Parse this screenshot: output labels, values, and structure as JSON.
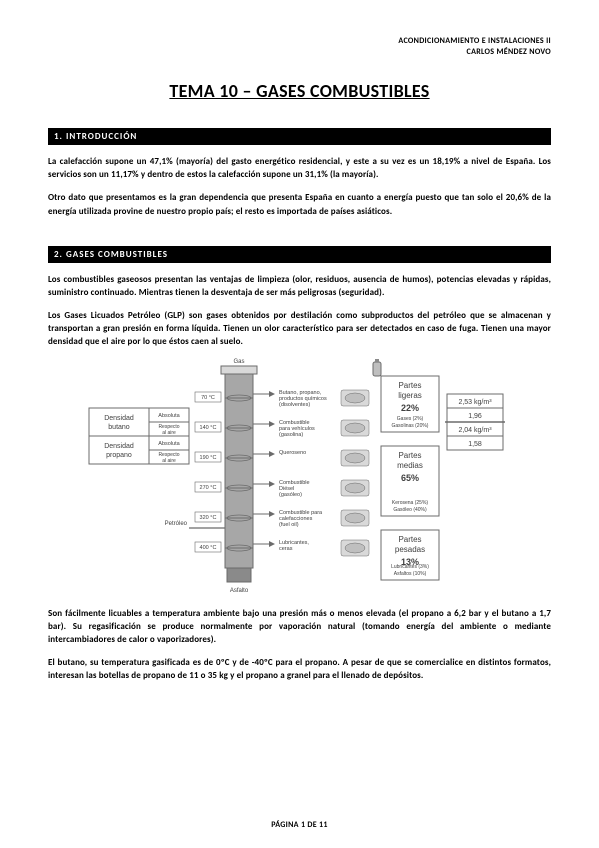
{
  "header": {
    "line1": "ACONDICIONAMIENTO E INSTALACIONES II",
    "line2": "CARLOS MÉNDEZ NOVO"
  },
  "title": "TEMA 10 – GASES COMBUSTIBLES",
  "section1": {
    "heading": "1. INTRODUCCIÓN",
    "p1": "La calefacción supone un 47,1% (mayoría) del gasto energético residencial, y este a su vez es un 18,19% a nivel de España. Los servicios son un 11,17% y dentro de estos la calefacción supone un 31,1% (la mayoría).",
    "p2": "Otro dato que presentamos es la gran dependencia que presenta España en cuanto a energía puesto que tan solo el 20,6% de la energía utilizada provine de nuestro propio país; el resto es importada de países asiáticos."
  },
  "section2": {
    "heading": "2. GASES COMBUSTIBLES",
    "p1": "Los combustibles gaseosos presentan las ventajas de limpieza (olor, residuos, ausencia de humos), potencias elevadas y rápidas, suministro continuado. Mientras tienen la desventaja de ser más peligrosas (seguridad).",
    "p2": "Los Gases Licuados Petróleo (GLP) son gases obtenidos por destilación como subproductos del petróleo que se almacenan y transportan a gran presión en forma líquida. Tienen un olor característico para ser detectados en caso de fuga. Tienen una mayor densidad que el aire por lo que éstos caen al suelo.",
    "p3": "Son fácilmente licuables a temperatura ambiente bajo una presión más o menos elevada (el propano a 6,2 bar y el butano a 1,7 bar). Su regasificación se produce normalmente por vaporación natural (tomando energía del ambiente o mediante intercambiadores de calor o vaporizadores).",
    "p4": "El butano, su temperatura gasificada es de 0ºC y de -40ºC para el propano. A pesar de que se comercialice en distintos formatos, interesan las botellas de propano de 11 o 35 kg y el propano a granel para el llenado de depósitos."
  },
  "footer": "PÁGINA 1 DE 11",
  "diagram": {
    "type": "infographic",
    "colors": {
      "stroke": "#6b6b6b",
      "fill_light": "#d9d9d9",
      "fill_mid": "#bfbfbf",
      "fill_dark": "#8a8a8a",
      "tower": "#a7a7a7",
      "text": "#404040",
      "bg": "#ffffff"
    },
    "fontsize": {
      "small": 6,
      "med": 8,
      "bold": 9
    },
    "left_labels": {
      "butano": "Densidad\nbutano",
      "propano": "Densidad\npropano",
      "abs": "Absoluta",
      "rel": "Respecto\nal aire"
    },
    "tower_temps": [
      "70 °C",
      "140 °C",
      "190 °C",
      "270 °C",
      "320 °C",
      "400 °C"
    ],
    "tower_top": "Gas",
    "tower_in": "Petróleo",
    "tower_bottom": "Asfalto",
    "fractions": [
      {
        "t1": "Butano, propano,",
        "t2": "productos químicos",
        "t3": "(disolventes)"
      },
      {
        "t1": "Combustible",
        "t2": "para vehículos",
        "t3": "(gasolina)"
      },
      {
        "t1": "Queroseno",
        "t2": "",
        "t3": ""
      },
      {
        "t1": "Combustible",
        "t2": "Diésel",
        "t3": "(gasóleo)"
      },
      {
        "t1": "Combustible para",
        "t2": "calefacciones",
        "t3": "(fuel oil)"
      },
      {
        "t1": "Lubricantes,",
        "t2": "ceras",
        "t3": ""
      }
    ],
    "right_boxes": [
      {
        "title": "Partes",
        "sub": "ligeras",
        "pct": "22%",
        "notes": [
          "Gases (2%)",
          "Gasolinas (20%)"
        ]
      },
      {
        "title": "Partes",
        "sub": "medias",
        "pct": "65%",
        "notes": [
          "Kerosena (25%)",
          "Gasóleo (40%)"
        ]
      },
      {
        "title": "Partes",
        "sub": "pesadas",
        "pct": "13%",
        "notes": [
          "Lubricantes (3%)",
          "Asfaltos (10%)"
        ]
      }
    ],
    "density_table": [
      [
        "2,53 kg/m³",
        "1,96"
      ],
      [
        "2,04 kg/m³",
        "1,58"
      ]
    ]
  }
}
